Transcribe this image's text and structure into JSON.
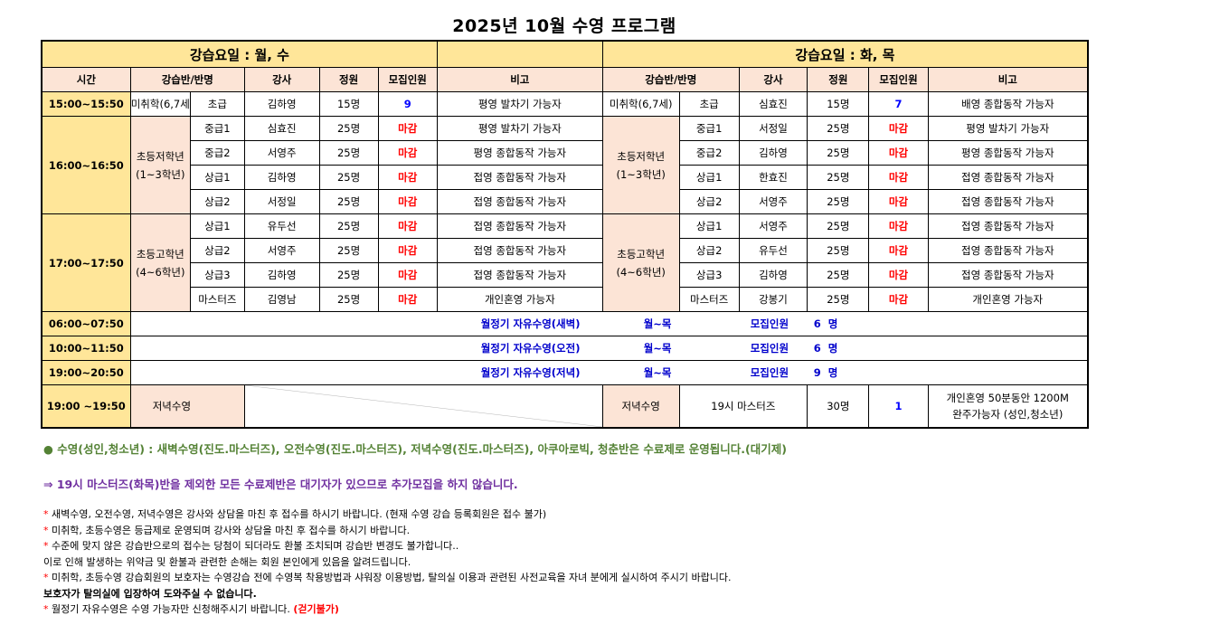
{
  "title": "2025년 10월 수영 프로그램",
  "groupA": "강습요일 :  월, 수",
  "groupB": "강습요일 : 화, 목",
  "headers": {
    "time": "시간",
    "class": "강습반/반명",
    "teacher": "강사",
    "cap": "정원",
    "recruit": "모집인원",
    "note": "비고"
  },
  "rows": {
    "r1": {
      "time": "15:00~15:50",
      "a_cat": "미취학(6,7세)",
      "a_lvl": "초급",
      "a_t": "김하영",
      "a_c": "15명",
      "a_r": "9",
      "a_n": "평영 발차기 가능자",
      "b_cat": "미취학(6,7세)",
      "b_lvl": "초급",
      "b_t": "심효진",
      "b_c": "15명",
      "b_r": "7",
      "b_n": "배영 종합동작 가능자"
    },
    "g2": {
      "time": "16:00~16:50",
      "a_cat": "초등저학년\n(1~3학년)",
      "b_cat": "초등저학년\n(1~3학년)"
    },
    "g3": {
      "time": "17:00~17:50",
      "a_cat": "초등고학년\n(4~6학년)",
      "b_cat": "초등고학년\n(4~6학년)"
    }
  },
  "g2rows": [
    {
      "a_lvl": "중급1",
      "a_t": "심효진",
      "a_c": "25명",
      "a_r": "마감",
      "a_n": "평영 발차기 가능자",
      "b_lvl": "중급1",
      "b_t": "서정일",
      "b_c": "25명",
      "b_r": "마감",
      "b_n": "평영 발차기 가능자"
    },
    {
      "a_lvl": "중급2",
      "a_t": "서영주",
      "a_c": "25명",
      "a_r": "마감",
      "a_n": "평영 종합동작 가능자",
      "b_lvl": "중급2",
      "b_t": "김하영",
      "b_c": "25명",
      "b_r": "마감",
      "b_n": "평영 종합동작 가능자"
    },
    {
      "a_lvl": "상급1",
      "a_t": "김하영",
      "a_c": "25명",
      "a_r": "마감",
      "a_n": "접영 종합동작 가능자",
      "b_lvl": "상급1",
      "b_t": "한효진",
      "b_c": "25명",
      "b_r": "마감",
      "b_n": "접영 종합동작 가능자"
    },
    {
      "a_lvl": "상급2",
      "a_t": "서정일",
      "a_c": "25명",
      "a_r": "마감",
      "a_n": "접영 종합동작 가능자",
      "b_lvl": "상급2",
      "b_t": "서영주",
      "b_c": "25명",
      "b_r": "마감",
      "b_n": "접영 종합동작 가능자"
    }
  ],
  "g3rows": [
    {
      "a_lvl": "상급1",
      "a_t": "유두선",
      "a_c": "25명",
      "a_r": "마감",
      "a_n": "접영 종합동작 가능자",
      "b_lvl": "상급1",
      "b_t": "서영주",
      "b_c": "25명",
      "b_r": "마감",
      "b_n": "접영 종합동작 가능자"
    },
    {
      "a_lvl": "상급2",
      "a_t": "서영주",
      "a_c": "25명",
      "a_r": "마감",
      "a_n": "접영 종합동작 가능자",
      "b_lvl": "상급2",
      "b_t": "유두선",
      "b_c": "25명",
      "b_r": "마감",
      "b_n": "접영 종합동작 가능자"
    },
    {
      "a_lvl": "상급3",
      "a_t": "김하영",
      "a_c": "25명",
      "a_r": "마감",
      "a_n": "접영 종합동작 가능자",
      "b_lvl": "상급3",
      "b_t": "김하영",
      "b_c": "25명",
      "b_r": "마감",
      "b_n": "접영 종합동작 가능자"
    },
    {
      "a_lvl": "마스터즈",
      "a_t": "김영남",
      "a_c": "25명",
      "a_r": "마감",
      "a_n": "개인혼영   가능자",
      "b_lvl": "마스터즈",
      "b_t": "강봉기",
      "b_c": "25명",
      "b_r": "마감",
      "b_n": "개인혼영 가능자"
    }
  ],
  "free": [
    {
      "time": "06:00~07:50",
      "name": "월정기 자유수영(새벽)",
      "days": "월~목",
      "label": "모집인원",
      "num": "6",
      "unit": "명"
    },
    {
      "time": "10:00~11:50",
      "name": "월정기 자유수영(오전)",
      "days": "월~목",
      "label": "모집인원",
      "num": "6",
      "unit": "명"
    },
    {
      "time": "19:00~20:50",
      "name": "월정기 자유수영(저녁)",
      "days": "월~목",
      "label": "모집인원",
      "num": "9",
      "unit": "명"
    }
  ],
  "evening": {
    "time": "19:00 ~19:50",
    "a_name": "저녁수영",
    "b_name": "저녁수영",
    "b_class": "19시 마스터즈",
    "b_c": "30명",
    "b_r": "1",
    "b_n1": "개인혼영 50분동안 1200M",
    "b_n2": "완주가능자 (성인,청소년)"
  },
  "notes": {
    "green": "● 수영(성인,청소년) : 새벽수영(진도.마스터즈), 오전수영(진도.마스터즈), 저녁수영(진도.마스터즈), 아쿠아로빅, 청춘반은 수료제로 운영됩니다.(대기제)",
    "purple": "⇒ 19시 마스터즈(화목)반을 제외한 모든 수료제반은 대기자가 있으므로 추가모집을 하지 않습니다.",
    "n1": " 새벽수영, 오전수영, 저녁수영은 강사와 상담을 마친 후  접수를 하시기 바랍니다. (현재 수영 강습 등록회원은 접수 불가)",
    "n2": " 미취학, 초등수영은 등급제로 운영되며 강사와 상담을 마친 후 접수를 하시기 바랍니다.",
    "n3": " 수준에 맞지 않은 강습반으로의 접수는 당첨이 되더라도 환불 조치되며 강습반 변경도 불가합니다..",
    "n3b": "  이로 인해 발생하는 위약금 및 환불과 관련한 손해는 회원 본인에게 있음을 알려드립니다.",
    "n4": " 미취학, 초등수영 강습회원의 보호자는 수영강습 전에 수영복 착용방법과 샤워장 이용방법, 탈의실 이용과 관련된 사전교육을 자녀 분에게 실시하여 주시기 바랍니다.",
    "n4b": "보호자가 탈의실에 입장하여 도와주실 수 없습니다.",
    "n5": " 월정기 자유수영은 수영 가능자만 신청해주시기 바랍니다. ",
    "n5red": "(걷기불가)",
    "star": "*"
  }
}
